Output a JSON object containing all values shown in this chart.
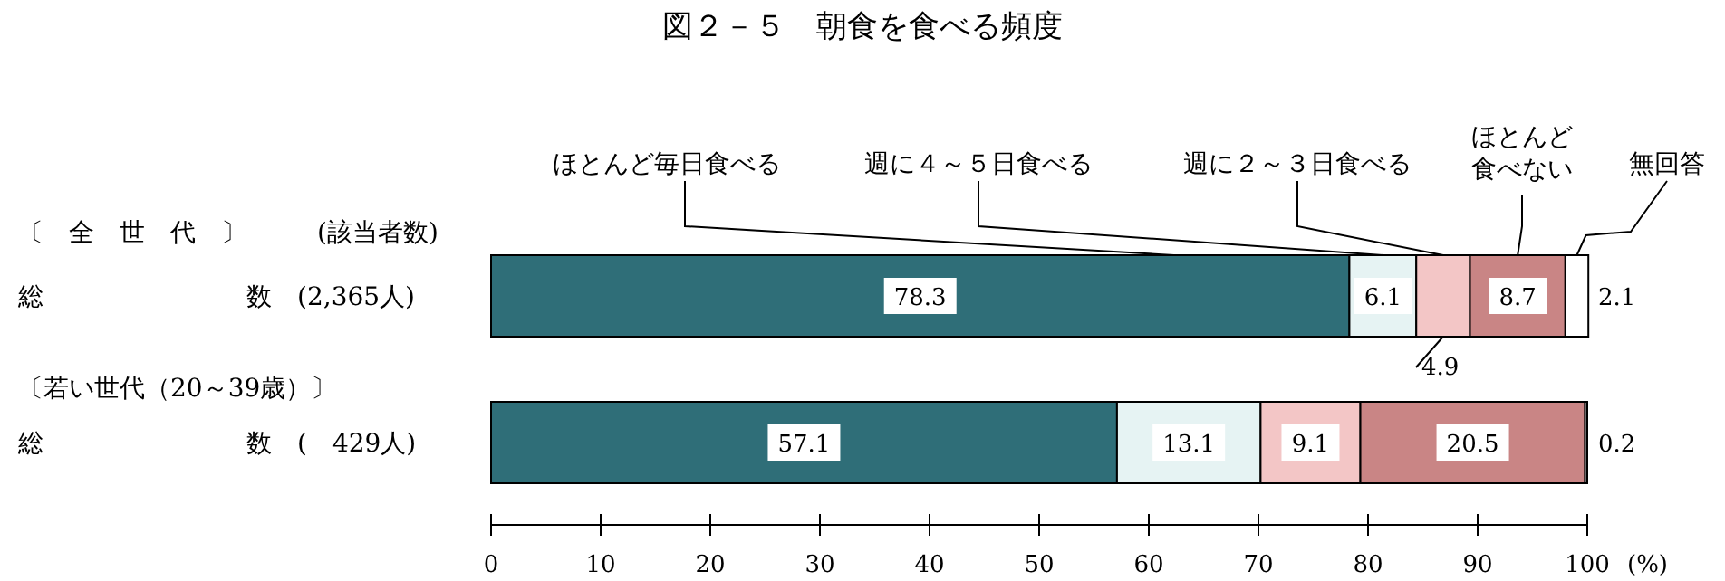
{
  "chart_data": {
    "type": "bar",
    "orientation": "horizontal",
    "stacked": true,
    "title": "図２－５　朝食を食べる頻度",
    "xlabel": "(%)",
    "categories": [
      "総　　　　　　　　数　(2,365人)",
      "総　　　　　　　　数　(　429人)"
    ],
    "annotations": [
      "〔　全　世　代　〕",
      "(該当者数)",
      "〔若い世代（20～39歳）〕"
    ],
    "series": [
      {
        "name": "ほとんど毎日食べる",
        "color": "#2f6e78",
        "values": [
          78.3,
          57.1
        ]
      },
      {
        "name": "週に４～５日食べる",
        "color": "#e6f3f3",
        "values": [
          6.1,
          13.1
        ]
      },
      {
        "name": "週に２～３日食べる",
        "color": "#f3c6c6",
        "values": [
          4.9,
          9.1
        ]
      },
      {
        "name": "ほとんど食べない",
        "color": "#c98585",
        "values": [
          8.7,
          20.5
        ]
      },
      {
        "name": "無回答",
        "color": "#ffffff",
        "values": [
          2.1,
          0.2
        ]
      }
    ],
    "xlim": [
      0,
      100
    ],
    "xticks": [
      0,
      10,
      20,
      30,
      40,
      50,
      60,
      70,
      80,
      90,
      100
    ],
    "data_labels": true,
    "grid": false,
    "legend": "top"
  }
}
